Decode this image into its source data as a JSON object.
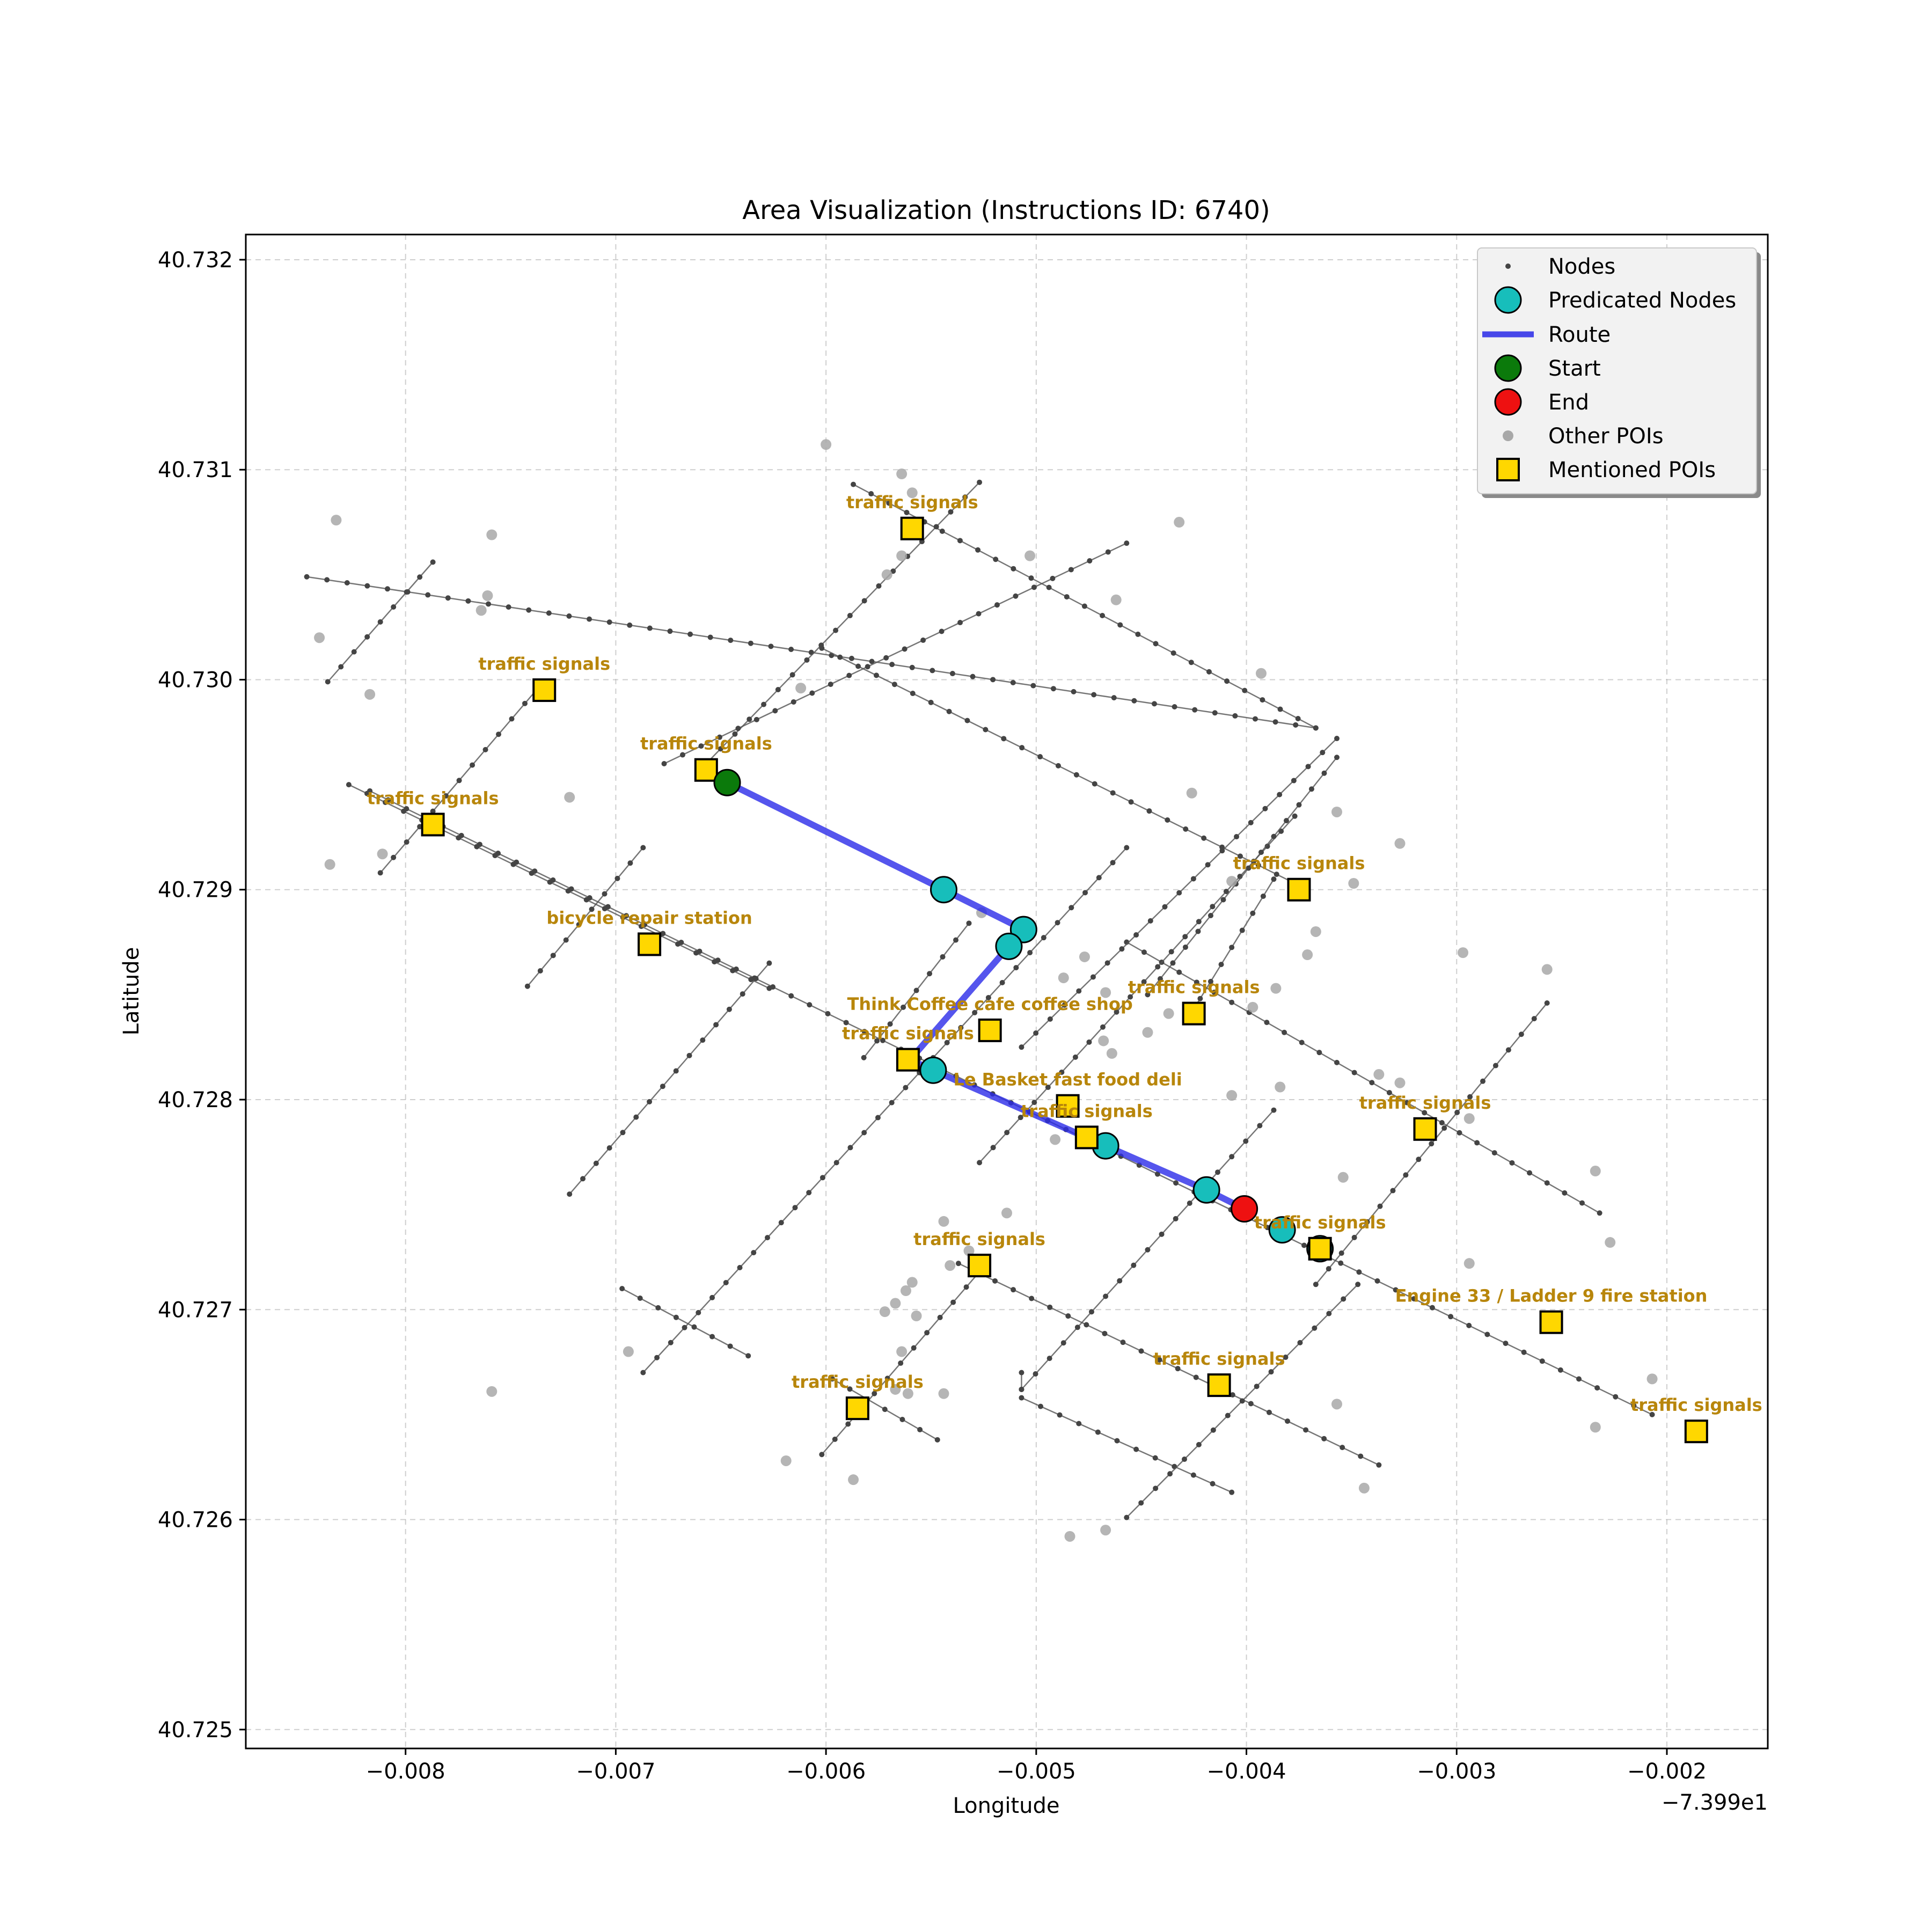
{
  "chart_data": {
    "type": "scatter",
    "title": "Area Visualization (Instructions ID: 6740)",
    "xlabel": "Longitude",
    "ylabel": "Latitude",
    "x_offset_label": "−7.399e1",
    "xlim": [
      -0.00876,
      -0.00152
    ],
    "ylim": [
      40.72491,
      40.73212
    ],
    "grid": true,
    "x_ticks": [
      {
        "value": -0.008,
        "label": "−0.008"
      },
      {
        "value": -0.007,
        "label": "−0.007"
      },
      {
        "value": -0.006,
        "label": "−0.006"
      },
      {
        "value": -0.005,
        "label": "−0.005"
      },
      {
        "value": -0.004,
        "label": "−0.004"
      },
      {
        "value": -0.003,
        "label": "−0.003"
      },
      {
        "value": -0.002,
        "label": "−0.002"
      }
    ],
    "y_ticks": [
      {
        "value": 40.725,
        "label": "40.725"
      },
      {
        "value": 40.726,
        "label": "40.726"
      },
      {
        "value": 40.727,
        "label": "40.727"
      },
      {
        "value": 40.728,
        "label": "40.728"
      },
      {
        "value": 40.729,
        "label": "40.729"
      },
      {
        "value": 40.73,
        "label": "40.730"
      },
      {
        "value": 40.731,
        "label": "40.731"
      },
      {
        "value": 40.732,
        "label": "40.732"
      }
    ],
    "legend": {
      "position": "top-right",
      "entries": [
        {
          "key": "nodes",
          "label": "Nodes"
        },
        {
          "key": "predicated",
          "label": "Predicated Nodes"
        },
        {
          "key": "route",
          "label": "Route"
        },
        {
          "key": "start",
          "label": "Start"
        },
        {
          "key": "end",
          "label": "End"
        },
        {
          "key": "other_pois",
          "label": "Other POIs"
        },
        {
          "key": "mentioned_pois",
          "label": "Mentioned POIs"
        }
      ]
    },
    "colors": {
      "nodes": "#444444",
      "edges": "#555555",
      "predicated": "#17bebb",
      "route": "#2a2ae8",
      "start": "#0b7a0b",
      "end": "#ee1111",
      "other_pois": "#a8a8a8",
      "mentioned_pois": "#ffd700",
      "poi_label": "#b8860b"
    },
    "streets": [
      [
        [
          -0.00847,
          40.73049
        ],
        [
          -0.00367,
          40.72977
        ]
      ],
      [
        [
          -0.00817,
          40.72947
        ],
        [
          -0.00207,
          40.7265
        ]
      ],
      [
        [
          -0.00827,
          40.7295
        ],
        [
          -0.00627,
          40.72853
        ]
      ],
      [
        [
          -0.00587,
          40.73093
        ],
        [
          -0.00367,
          40.72977
        ]
      ],
      [
        [
          -0.00602,
          40.73015
        ],
        [
          -0.00377,
          40.72903
        ]
      ],
      [
        [
          -0.00457,
          40.72875
        ],
        [
          -0.00232,
          40.72746
        ]
      ],
      [
        [
          -0.00697,
          40.7271
        ],
        [
          -0.00637,
          40.72678
        ]
      ],
      [
        [
          -0.00597,
          40.72667
        ],
        [
          -0.00547,
          40.72638
        ]
      ],
      [
        [
          -0.00537,
          40.72722
        ],
        [
          -0.00337,
          40.72626
        ]
      ],
      [
        [
          -0.00507,
          40.72658
        ],
        [
          -0.00407,
          40.72613
        ]
      ],
      [
        [
          -0.00837,
          40.72999
        ],
        [
          -0.00787,
          40.73056
        ]
      ],
      [
        [
          -0.00812,
          40.72908
        ],
        [
          -0.00737,
          40.72996
        ]
      ],
      [
        [
          -0.00742,
          40.72854
        ],
        [
          -0.00687,
          40.7292
        ]
      ],
      [
        [
          -0.00722,
          40.72755
        ],
        [
          -0.00627,
          40.72865
        ]
      ],
      [
        [
          -0.00687,
          40.7267
        ],
        [
          -0.00457,
          40.7292
        ]
      ],
      [
        [
          -0.00602,
          40.72631
        ],
        [
          -0.00527,
          40.72718
        ]
      ],
      [
        [
          -0.00582,
          40.7282
        ],
        [
          -0.00532,
          40.72884
        ]
      ],
      [
        [
          -0.00657,
          40.7296
        ],
        [
          -0.00527,
          40.73094
        ]
      ],
      [
        [
          -0.00677,
          40.7296
        ],
        [
          -0.00457,
          40.73065
        ]
      ],
      [
        [
          -0.00527,
          40.7277
        ],
        [
          -0.00377,
          40.72935
        ]
      ],
      [
        [
          -0.00507,
          40.72825
        ],
        [
          -0.00357,
          40.72972
        ]
      ],
      [
        [
          -0.00427,
          40.7284
        ],
        [
          -0.00387,
          40.72905
        ]
      ],
      [
        [
          -0.00507,
          40.72662
        ],
        [
          -0.00387,
          40.72795
        ]
      ],
      [
        [
          -0.00457,
          40.72601
        ],
        [
          -0.00347,
          40.72712
        ]
      ],
      [
        [
          -0.00367,
          40.72712
        ],
        [
          -0.00257,
          40.72846
        ]
      ],
      [
        [
          -0.00447,
          40.7285
        ],
        [
          -0.00357,
          40.72963
        ]
      ],
      [
        [
          -0.00507,
          40.72662
        ],
        [
          -0.00507,
          40.7267
        ]
      ]
    ],
    "route": [
      [
        -0.00647,
        40.72951
      ],
      [
        -0.00544,
        40.729
      ],
      [
        -0.00506,
        40.72881
      ],
      [
        -0.00513,
        40.72873
      ],
      [
        -0.0056,
        40.72819
      ],
      [
        -0.00549,
        40.72814
      ],
      [
        -0.00467,
        40.72778
      ],
      [
        -0.00419,
        40.72757
      ],
      [
        -0.00401,
        40.72748
      ]
    ],
    "predicated_nodes": [
      [
        -0.00544,
        40.729
      ],
      [
        -0.00506,
        40.72881
      ],
      [
        -0.00513,
        40.72873
      ],
      [
        -0.00549,
        40.72814
      ],
      [
        -0.00467,
        40.72778
      ],
      [
        -0.00419,
        40.72757
      ],
      [
        -0.00383,
        40.72738
      ],
      [
        -0.00365,
        40.72729
      ]
    ],
    "start": [
      -0.00647,
      40.72951
    ],
    "end": [
      -0.00401,
      40.72748
    ],
    "other_pois": [
      [
        -0.006,
        40.73112
      ],
      [
        -0.00564,
        40.73098
      ],
      [
        -0.00559,
        40.73089
      ],
      [
        -0.00432,
        40.73075
      ],
      [
        -0.00841,
        40.7302
      ],
      [
        -0.00833,
        40.73076
      ],
      [
        -0.00759,
        40.73069
      ],
      [
        -0.00761,
        40.7304
      ],
      [
        -0.00764,
        40.73033
      ],
      [
        -0.00817,
        40.72993
      ],
      [
        -0.00612,
        40.72996
      ],
      [
        -0.00564,
        40.73059
      ],
      [
        -0.00571,
        40.7305
      ],
      [
        -0.00503,
        40.73059
      ],
      [
        -0.00462,
        40.73038
      ],
      [
        -0.00722,
        40.72944
      ],
      [
        -0.00836,
        40.72912
      ],
      [
        -0.00811,
        40.72917
      ],
      [
        -0.00393,
        40.73003
      ],
      [
        -0.00426,
        40.72946
      ],
      [
        -0.00357,
        40.72937
      ],
      [
        -0.00327,
        40.72922
      ],
      [
        -0.00349,
        40.72903
      ],
      [
        -0.00407,
        40.72904
      ],
      [
        -0.00367,
        40.7288
      ],
      [
        -0.00371,
        40.72869
      ],
      [
        -0.00297,
        40.7287
      ],
      [
        -0.00257,
        40.72862
      ],
      [
        -0.00386,
        40.72853
      ],
      [
        -0.00397,
        40.72844
      ],
      [
        -0.00437,
        40.72841
      ],
      [
        -0.00447,
        40.72832
      ],
      [
        -0.00464,
        40.72822
      ],
      [
        -0.00526,
        40.72889
      ],
      [
        -0.00467,
        40.72851
      ],
      [
        -0.00407,
        40.72802
      ],
      [
        -0.00384,
        40.72806
      ],
      [
        -0.00327,
        40.72808
      ],
      [
        -0.00337,
        40.72812
      ],
      [
        -0.00294,
        40.72791
      ],
      [
        -0.00354,
        40.72763
      ],
      [
        -0.00234,
        40.72766
      ],
      [
        -0.00227,
        40.72732
      ],
      [
        -0.00294,
        40.72722
      ],
      [
        -0.00491,
        40.72781
      ],
      [
        -0.00468,
        40.72828
      ],
      [
        -0.00477,
        40.72868
      ],
      [
        -0.00487,
        40.72858
      ],
      [
        -0.00544,
        40.72742
      ],
      [
        -0.00532,
        40.72728
      ],
      [
        -0.00514,
        40.72746
      ],
      [
        -0.00541,
        40.72721
      ],
      [
        -0.00559,
        40.72713
      ],
      [
        -0.00562,
        40.72709
      ],
      [
        -0.00567,
        40.72703
      ],
      [
        -0.00572,
        40.72699
      ],
      [
        -0.00557,
        40.72697
      ],
      [
        -0.00564,
        40.7268
      ],
      [
        -0.00561,
        40.7266
      ],
      [
        -0.00567,
        40.72662
      ],
      [
        -0.00544,
        40.7266
      ],
      [
        -0.00619,
        40.72628
      ],
      [
        -0.00587,
        40.72619
      ],
      [
        -0.00694,
        40.7268
      ],
      [
        -0.00759,
        40.72661
      ],
      [
        -0.00484,
        40.72592
      ],
      [
        -0.00467,
        40.72595
      ],
      [
        -0.00357,
        40.72655
      ],
      [
        -0.00344,
        40.72615
      ],
      [
        -0.00207,
        40.72667
      ],
      [
        -0.00234,
        40.72644
      ]
    ],
    "mentioned_pois": [
      {
        "x": -0.00559,
        "y": 40.73072,
        "label": "traffic signals"
      },
      {
        "x": -0.00734,
        "y": 40.72995,
        "label": "traffic signals"
      },
      {
        "x": -0.00657,
        "y": 40.72957,
        "label": "traffic signals"
      },
      {
        "x": -0.00787,
        "y": 40.72931,
        "label": "traffic signals"
      },
      {
        "x": -0.00375,
        "y": 40.729,
        "label": "traffic signals"
      },
      {
        "x": -0.00684,
        "y": 40.72874,
        "label": "bicycle repair station"
      },
      {
        "x": -0.00425,
        "y": 40.72841,
        "label": "traffic signals"
      },
      {
        "x": -0.00522,
        "y": 40.72833,
        "label": "Think Coffee cafe coffee shop"
      },
      {
        "x": -0.00561,
        "y": 40.72819,
        "label": "traffic signals"
      },
      {
        "x": -0.00485,
        "y": 40.72797,
        "label": "Le Basket fast food deli"
      },
      {
        "x": -0.00476,
        "y": 40.72782,
        "label": "traffic signals"
      },
      {
        "x": -0.00315,
        "y": 40.72786,
        "label": "traffic signals"
      },
      {
        "x": -0.00365,
        "y": 40.72729,
        "label": "traffic signals"
      },
      {
        "x": -0.00527,
        "y": 40.72721,
        "label": "traffic signals"
      },
      {
        "x": -0.00255,
        "y": 40.72694,
        "label": "Engine 33 / Ladder 9 fire station"
      },
      {
        "x": -0.00413,
        "y": 40.72664,
        "label": "traffic signals"
      },
      {
        "x": -0.00585,
        "y": 40.72653,
        "label": "traffic signals"
      },
      {
        "x": -0.00186,
        "y": 40.72642,
        "label": "traffic signals"
      }
    ]
  }
}
